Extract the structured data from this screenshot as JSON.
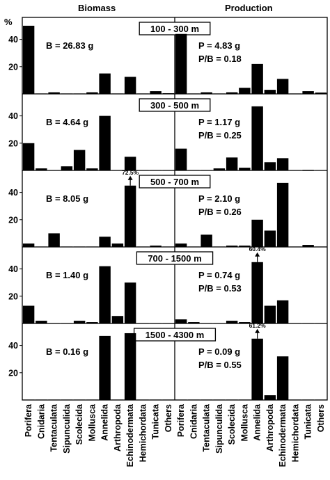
{
  "chart_data": {
    "type": "bar",
    "titles": {
      "left": "Biomass",
      "right": "Production"
    },
    "ylabel": "%",
    "ylim": [
      0,
      50
    ],
    "yticks": [
      20,
      40
    ],
    "categories": [
      "Porifera",
      "Cnidaria",
      "Tentaculata",
      "Sipunculida",
      "Scolecida",
      "Mollusca",
      "Annelida",
      "Arthropoda",
      "Echinodermata",
      "Hemichordata",
      "Tunicata",
      "Others"
    ],
    "rows": [
      {
        "depth": "100 - 300 m",
        "biomass": {
          "label": "B = 26.83 g",
          "values": [
            50,
            0.3,
            1.2,
            0.3,
            0.3,
            1.2,
            15,
            0.3,
            12.5,
            0.3,
            2,
            0.5
          ]
        },
        "production": {
          "label1": "P = 4.83 g",
          "label2": "P/B = 0.18",
          "values": [
            44,
            0.3,
            1.2,
            0.3,
            1.2,
            4.5,
            22,
            3,
            11,
            0.3,
            2,
            1
          ]
        }
      },
      {
        "depth": "300 - 500 m",
        "biomass": {
          "label": "B = 4.64 g",
          "values": [
            20,
            1.5,
            0.3,
            3,
            15,
            1.5,
            40,
            0.3,
            10,
            0.3,
            0.3,
            0.3
          ]
        },
        "production": {
          "label1": "P = 1.17 g",
          "label2": "P/B = 0.25",
          "values": [
            16,
            0.3,
            0.3,
            1.5,
            9.5,
            2,
            47,
            6,
            9,
            0.3,
            0.5,
            0.3
          ]
        }
      },
      {
        "depth": "500 - 700 m",
        "biomass": {
          "label": "B = 8.05 g",
          "annotation": "72.5%",
          "annotation_index": 8,
          "values": [
            2.5,
            0.3,
            10,
            0.3,
            0.3,
            0.3,
            7.5,
            2.5,
            45,
            0.3,
            1,
            0.3
          ]
        },
        "production": {
          "label1": "P = 2.10 g",
          "label2": "P/B = 0.26",
          "values": [
            2.5,
            0.3,
            9,
            0.3,
            1,
            1,
            20,
            12,
            47,
            0.3,
            1.5,
            0.3
          ]
        }
      },
      {
        "depth": "700 - 1500 m",
        "biomass": {
          "label": "B = 1.40 g",
          "values": [
            13,
            2,
            0.3,
            0.3,
            2,
            1,
            42,
            5.5,
            30,
            0.3,
            0.3,
            0.3
          ]
        },
        "production": {
          "label1": "P = 0.74 g",
          "label2": "P/B = 0.53",
          "annotation": "60.4%",
          "annotation_index": 6,
          "values": [
            3,
            1,
            0.3,
            0.3,
            2,
            1,
            45,
            13,
            17,
            0.3,
            0.3,
            0.3
          ]
        }
      },
      {
        "depth": "1500 - 4300 m",
        "biomass": {
          "label": "B = 0.16 g",
          "values": [
            0.3,
            0.3,
            0.3,
            0.3,
            0.3,
            0.3,
            47,
            0.3,
            49,
            0.3,
            0.3,
            0.3
          ]
        },
        "production": {
          "label1": "P = 0.09 g",
          "label2": "P/B = 0.55",
          "annotation": "61.2%",
          "annotation_index": 6,
          "values": [
            0.3,
            0.3,
            0.3,
            0.3,
            0.3,
            0.3,
            45,
            3.5,
            32,
            0.3,
            0.3,
            0.3
          ]
        }
      }
    ]
  }
}
